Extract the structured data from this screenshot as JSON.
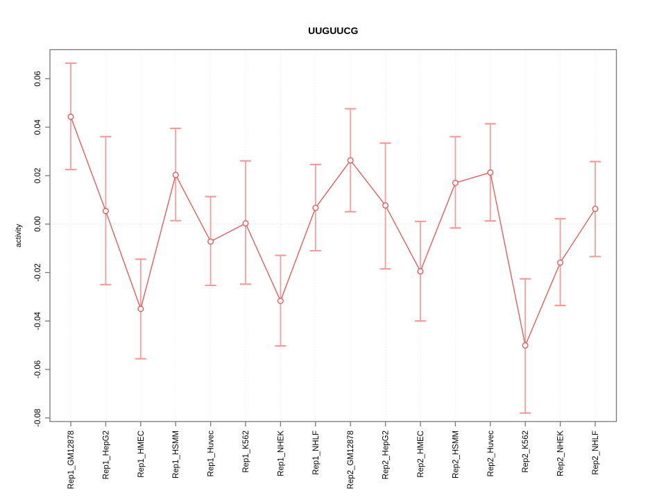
{
  "chart_data": {
    "type": "line",
    "title": "UUGUUCG",
    "xlabel": "",
    "ylabel": "activity",
    "legend": "none",
    "grid": "dotted vertical line at each category; dotted horizontal line at y=0",
    "ylim": [
      -0.0815,
      0.072
    ],
    "y_ticks": [
      -0.08,
      -0.06,
      -0.04,
      -0.02,
      0.0,
      0.02,
      0.04,
      0.06
    ],
    "categories": [
      "Rep1_GM12878",
      "Rep1_HepG2",
      "Rep1_HMEC",
      "Rep1_HSMM",
      "Rep1_Huvec",
      "Rep1_K562",
      "Rep1_NHEK",
      "Rep1_NHLF",
      "Rep2_GM12878",
      "Rep2_HepG2",
      "Rep2_HMEC",
      "Rep2_HSMM",
      "Rep2_Huvec",
      "Rep2_K562",
      "Rep2_NHEK",
      "Rep2_NHLF"
    ],
    "series": [
      {
        "name": "activity",
        "marker": "open-circle",
        "values": [
          0.0443,
          0.0054,
          -0.035,
          0.0203,
          -0.0072,
          0.0003,
          -0.0317,
          0.0067,
          0.0263,
          0.0077,
          -0.0195,
          0.017,
          0.0213,
          -0.0501,
          -0.0159,
          0.0063
        ],
        "upper": [
          0.0664,
          0.0361,
          -0.0145,
          0.0395,
          0.0113,
          0.0261,
          -0.0129,
          0.0246,
          0.0476,
          0.0334,
          0.0011,
          0.0361,
          0.0414,
          -0.0226,
          0.0022,
          0.0258
        ],
        "lower": [
          0.0225,
          -0.025,
          -0.0556,
          0.0014,
          -0.0253,
          -0.0248,
          -0.0503,
          -0.011,
          0.0051,
          -0.0185,
          -0.04,
          -0.0016,
          0.0013,
          -0.078,
          -0.0336,
          -0.0134
        ]
      }
    ],
    "colors": {
      "series_line": "#e85050",
      "error_bar": "#f49c9c",
      "marker_stroke": "#e85050",
      "gridline": "#e4e4e4",
      "zero_line": "#d8d8d8",
      "axis_frame": "#777777",
      "text": "#000000",
      "background": "#ffffff"
    }
  }
}
